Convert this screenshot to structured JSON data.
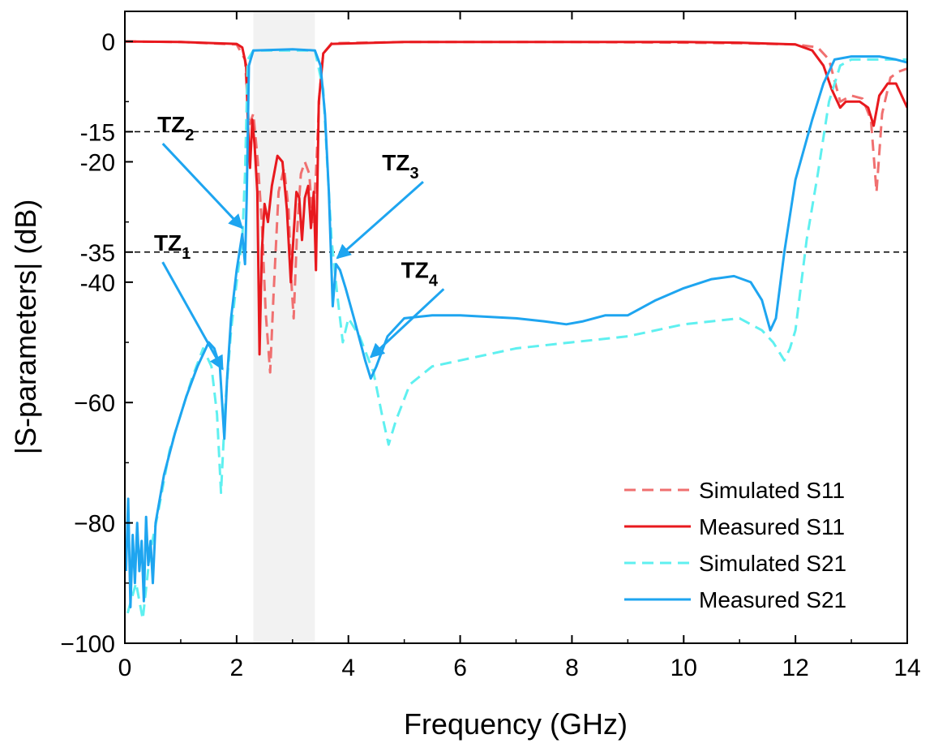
{
  "chart_data": {
    "type": "line",
    "xlabel": "Frequency (GHz)",
    "ylabel": "|S-parameters| (dB)",
    "xlim": [
      0,
      14
    ],
    "ylim": [
      -100,
      5
    ],
    "xticks": [
      0,
      2,
      4,
      6,
      8,
      10,
      12,
      14
    ],
    "yticks": [
      {
        "value": 0,
        "label": "0"
      },
      {
        "value": -15,
        "label": "-15"
      },
      {
        "value": -20,
        "label": "-20"
      },
      {
        "value": -35,
        "label": "-35"
      },
      {
        "value": -40,
        "label": "-40"
      },
      {
        "value": -60,
        "label": "−60"
      },
      {
        "value": -80,
        "label": "−80"
      },
      {
        "value": -100,
        "label": "−100"
      }
    ],
    "grid": false,
    "legend_position": "bottom-right",
    "passband_shading": {
      "x0": 2.3,
      "x1": 3.4,
      "color": "#f2f2f2"
    },
    "reference_lines": [
      {
        "y": -15,
        "style": "dashed",
        "color": "#000000"
      },
      {
        "y": -35,
        "style": "dashed",
        "color": "#000000"
      }
    ],
    "series": [
      {
        "name": "Simulated S11",
        "color": "#f07070",
        "dash": "dashed",
        "points": [
          [
            0,
            0
          ],
          [
            1,
            -0.1
          ],
          [
            2.0,
            -0.5
          ],
          [
            2.15,
            -3
          ],
          [
            2.22,
            -14
          ],
          [
            2.3,
            -12
          ],
          [
            2.38,
            -20
          ],
          [
            2.45,
            -30
          ],
          [
            2.52,
            -45
          ],
          [
            2.6,
            -55
          ],
          [
            2.66,
            -42
          ],
          [
            2.75,
            -25
          ],
          [
            2.85,
            -21
          ],
          [
            2.93,
            -28
          ],
          [
            2.98,
            -40
          ],
          [
            3.02,
            -46
          ],
          [
            3.08,
            -32
          ],
          [
            3.15,
            -22
          ],
          [
            3.22,
            -20
          ],
          [
            3.3,
            -22
          ],
          [
            3.36,
            -30
          ],
          [
            3.42,
            -22
          ],
          [
            3.48,
            -9
          ],
          [
            3.55,
            -2
          ],
          [
            3.7,
            -0.3
          ],
          [
            5,
            -0.1
          ],
          [
            8,
            -0.1
          ],
          [
            10,
            -0.2
          ],
          [
            11,
            -0.3
          ],
          [
            12,
            -0.5
          ],
          [
            12.4,
            -1
          ],
          [
            12.6,
            -3
          ],
          [
            12.8,
            -10
          ],
          [
            13.0,
            -9
          ],
          [
            13.2,
            -9.5
          ],
          [
            13.35,
            -13
          ],
          [
            13.45,
            -25
          ],
          [
            13.55,
            -12
          ],
          [
            13.7,
            -6
          ],
          [
            13.85,
            -5
          ],
          [
            14,
            -4.5
          ]
        ]
      },
      {
        "name": "Measured S11",
        "color": "#e8191e",
        "dash": "solid",
        "points": [
          [
            0,
            0
          ],
          [
            1,
            -0.1
          ],
          [
            2.0,
            -0.4
          ],
          [
            2.1,
            -1
          ],
          [
            2.17,
            -4
          ],
          [
            2.2,
            -13
          ],
          [
            2.24,
            -21
          ],
          [
            2.28,
            -13
          ],
          [
            2.32,
            -17
          ],
          [
            2.37,
            -25
          ],
          [
            2.41,
            -52
          ],
          [
            2.45,
            -35
          ],
          [
            2.5,
            -27
          ],
          [
            2.56,
            -30
          ],
          [
            2.63,
            -24
          ],
          [
            2.73,
            -19
          ],
          [
            2.82,
            -20
          ],
          [
            2.9,
            -28
          ],
          [
            2.97,
            -40
          ],
          [
            3.02,
            -32
          ],
          [
            3.07,
            -25
          ],
          [
            3.12,
            -26
          ],
          [
            3.17,
            -33
          ],
          [
            3.22,
            -26
          ],
          [
            3.28,
            -24
          ],
          [
            3.33,
            -31
          ],
          [
            3.38,
            -25
          ],
          [
            3.42,
            -38
          ],
          [
            3.47,
            -10
          ],
          [
            3.55,
            -2
          ],
          [
            3.7,
            -0.4
          ],
          [
            5,
            -0.1
          ],
          [
            8,
            -0.1
          ],
          [
            10,
            -0.1
          ],
          [
            11,
            -0.2
          ],
          [
            12,
            -0.5
          ],
          [
            12.3,
            -1.5
          ],
          [
            12.5,
            -4
          ],
          [
            12.65,
            -8
          ],
          [
            12.8,
            -11
          ],
          [
            12.9,
            -10
          ],
          [
            13.0,
            -10
          ],
          [
            13.15,
            -10
          ],
          [
            13.3,
            -11
          ],
          [
            13.4,
            -14
          ],
          [
            13.5,
            -9
          ],
          [
            13.65,
            -7
          ],
          [
            13.8,
            -7
          ],
          [
            13.9,
            -9
          ],
          [
            14,
            -11
          ]
        ]
      },
      {
        "name": "Simulated S21",
        "color": "#5ff0f0",
        "dash": "dashed",
        "points": [
          [
            0.05,
            -95
          ],
          [
            0.2,
            -90
          ],
          [
            0.32,
            -96
          ],
          [
            0.45,
            -85
          ],
          [
            0.6,
            -78
          ],
          [
            0.8,
            -68
          ],
          [
            1.0,
            -62
          ],
          [
            1.2,
            -56
          ],
          [
            1.4,
            -51
          ],
          [
            1.55,
            -54
          ],
          [
            1.65,
            -62
          ],
          [
            1.72,
            -75
          ],
          [
            1.8,
            -60
          ],
          [
            1.9,
            -48
          ],
          [
            2.0,
            -40
          ],
          [
            2.1,
            -33
          ],
          [
            2.15,
            -22
          ],
          [
            2.2,
            -3
          ],
          [
            2.3,
            -1.5
          ],
          [
            3.0,
            -1.5
          ],
          [
            3.4,
            -1.5
          ],
          [
            3.55,
            -8
          ],
          [
            3.62,
            -20
          ],
          [
            3.7,
            -33
          ],
          [
            3.8,
            -42
          ],
          [
            3.9,
            -50
          ],
          [
            4.0,
            -46
          ],
          [
            4.2,
            -49
          ],
          [
            4.45,
            -55
          ],
          [
            4.6,
            -62
          ],
          [
            4.72,
            -67
          ],
          [
            4.85,
            -63
          ],
          [
            5.1,
            -57
          ],
          [
            5.5,
            -54
          ],
          [
            6,
            -53
          ],
          [
            7,
            -51
          ],
          [
            8,
            -50
          ],
          [
            9,
            -49
          ],
          [
            10,
            -47
          ],
          [
            10.5,
            -46.5
          ],
          [
            11,
            -46
          ],
          [
            11.4,
            -48
          ],
          [
            11.6,
            -50
          ],
          [
            11.8,
            -53
          ],
          [
            11.9,
            -51
          ],
          [
            12.0,
            -48
          ],
          [
            12.2,
            -33
          ],
          [
            12.4,
            -22
          ],
          [
            12.6,
            -10
          ],
          [
            12.8,
            -4
          ],
          [
            13.0,
            -3
          ],
          [
            13.5,
            -3
          ],
          [
            14,
            -3
          ]
        ]
      },
      {
        "name": "Measured S21",
        "color": "#1ea5f0",
        "dash": "solid",
        "points": [
          [
            0.02,
            -88
          ],
          [
            0.06,
            -76
          ],
          [
            0.1,
            -94
          ],
          [
            0.14,
            -82
          ],
          [
            0.18,
            -90
          ],
          [
            0.22,
            -80
          ],
          [
            0.26,
            -88
          ],
          [
            0.3,
            -83
          ],
          [
            0.34,
            -93
          ],
          [
            0.38,
            -79
          ],
          [
            0.42,
            -87
          ],
          [
            0.46,
            -83
          ],
          [
            0.5,
            -90
          ],
          [
            0.55,
            -80
          ],
          [
            0.7,
            -72
          ],
          [
            0.9,
            -65
          ],
          [
            1.1,
            -59
          ],
          [
            1.3,
            -54
          ],
          [
            1.5,
            -50
          ],
          [
            1.6,
            -51
          ],
          [
            1.7,
            -54
          ],
          [
            1.78,
            -66
          ],
          [
            1.83,
            -56
          ],
          [
            1.9,
            -46
          ],
          [
            2.0,
            -38
          ],
          [
            2.1,
            -32
          ],
          [
            2.15,
            -37
          ],
          [
            2.18,
            -26
          ],
          [
            2.22,
            -4
          ],
          [
            2.3,
            -1.5
          ],
          [
            3.0,
            -1.3
          ],
          [
            3.4,
            -1.5
          ],
          [
            3.5,
            -4
          ],
          [
            3.58,
            -12
          ],
          [
            3.65,
            -25
          ],
          [
            3.72,
            -44
          ],
          [
            3.78,
            -37
          ],
          [
            3.85,
            -38
          ],
          [
            3.95,
            -41
          ],
          [
            4.1,
            -46
          ],
          [
            4.3,
            -53
          ],
          [
            4.4,
            -56
          ],
          [
            4.5,
            -54
          ],
          [
            4.7,
            -49
          ],
          [
            5.0,
            -46
          ],
          [
            5.5,
            -45.5
          ],
          [
            6,
            -45.5
          ],
          [
            7,
            -46
          ],
          [
            7.5,
            -46.5
          ],
          [
            7.9,
            -47
          ],
          [
            8.2,
            -46.5
          ],
          [
            8.6,
            -45.5
          ],
          [
            9,
            -45.5
          ],
          [
            9.5,
            -43
          ],
          [
            10,
            -41
          ],
          [
            10.5,
            -39.5
          ],
          [
            10.9,
            -39
          ],
          [
            11.2,
            -40
          ],
          [
            11.4,
            -43
          ],
          [
            11.55,
            -48
          ],
          [
            11.65,
            -46
          ],
          [
            11.8,
            -35
          ],
          [
            12.0,
            -23
          ],
          [
            12.3,
            -13
          ],
          [
            12.5,
            -7
          ],
          [
            12.7,
            -3
          ],
          [
            13,
            -2.5
          ],
          [
            13.5,
            -2.5
          ],
          [
            13.8,
            -3
          ],
          [
            14,
            -3.5
          ]
        ]
      }
    ],
    "annotations": [
      {
        "id": "tz1",
        "text": "TZ",
        "sub": "1",
        "x": 1.75,
        "y": -55
      },
      {
        "id": "tz2",
        "text": "TZ",
        "sub": "2",
        "x": 2.1,
        "y": -31
      },
      {
        "id": "tz3",
        "text": "TZ",
        "sub": "3",
        "x": 3.8,
        "y": -36
      },
      {
        "id": "tz4",
        "text": "TZ",
        "sub": "4",
        "x": 4.4,
        "y": -53
      }
    ]
  }
}
